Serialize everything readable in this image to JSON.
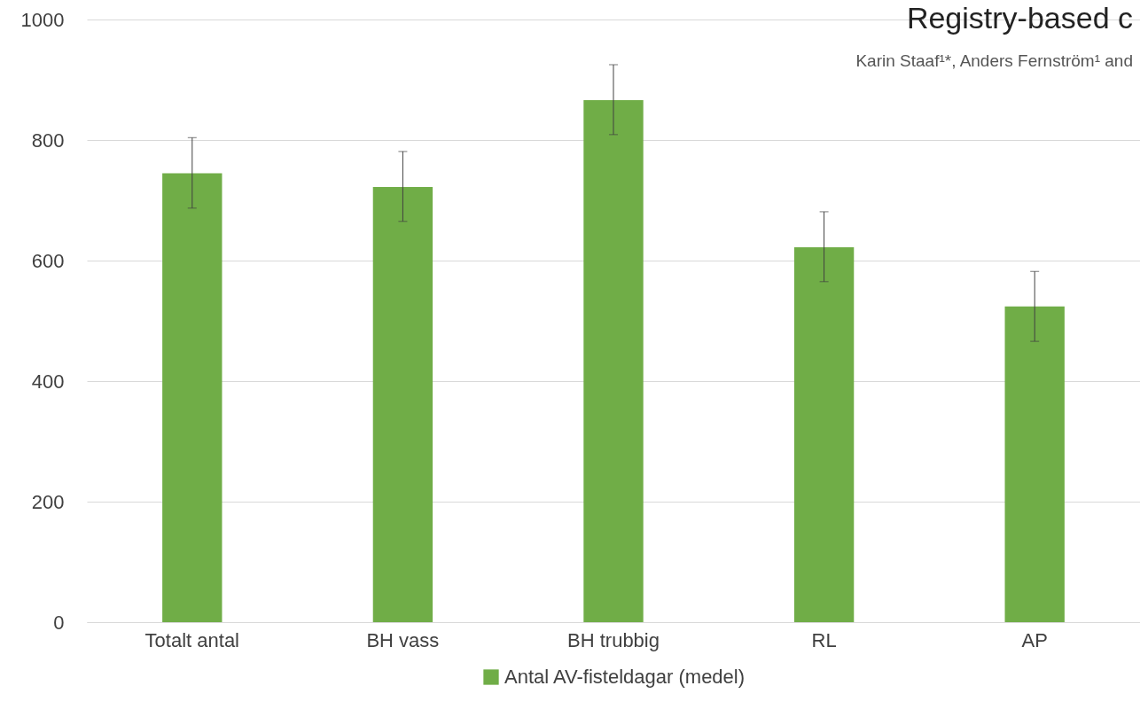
{
  "chart_data": {
    "type": "bar",
    "categories": [
      "Totalt antal",
      "BH vass",
      "BH trubbig",
      "RL",
      "AP"
    ],
    "series": [
      {
        "name": "Antal AV-fisteldagar (medel)",
        "color": "#70ad47",
        "values": [
          745,
          722,
          866,
          622,
          524
        ],
        "errors": [
          [
            687,
            804
          ],
          [
            665,
            781
          ],
          [
            809,
            925
          ],
          [
            565,
            681
          ],
          [
            466,
            582
          ]
        ]
      }
    ],
    "ylim": [
      0,
      1000
    ],
    "yticks": [
      0,
      200,
      400,
      600,
      800,
      1000
    ],
    "grid": "y",
    "legend": "bottom",
    "annotations": [
      "Registry-based c",
      "Karin Staaf¹*, Anders Fernström¹ and"
    ]
  }
}
